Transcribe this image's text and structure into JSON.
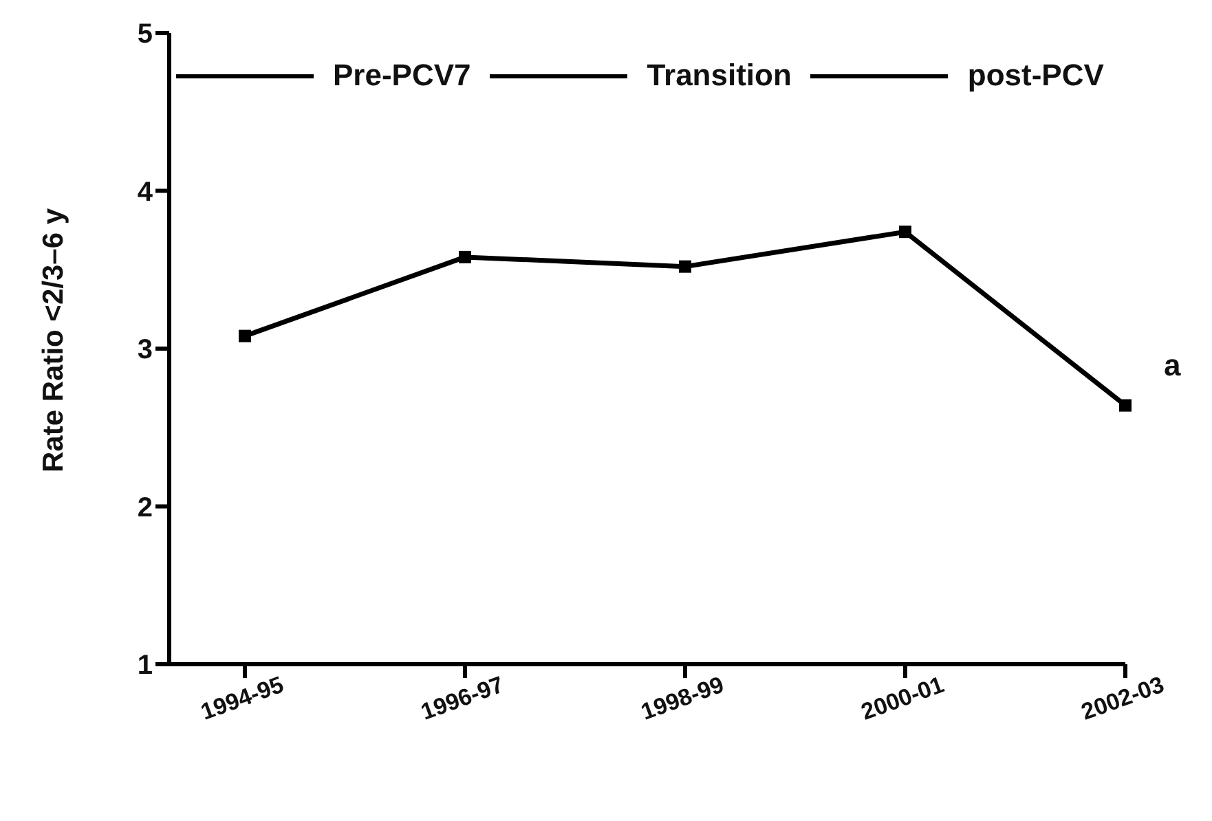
{
  "chart_data": {
    "type": "line",
    "ylabel": "Rate Ratio <2/3–6 y",
    "categories": [
      "1994-95",
      "1996-97",
      "1998-99",
      "2000-01",
      "2002-03"
    ],
    "series": [
      {
        "color": "#000000",
        "values": [
          3.08,
          3.58,
          3.52,
          3.74,
          2.64
        ]
      }
    ],
    "ylim": [
      1,
      5
    ],
    "yticks": [
      1,
      2,
      3,
      4,
      5
    ],
    "grid": false,
    "marker": "square",
    "line_style": "solid",
    "annotations": [
      "Pre-PCV7",
      "Transition",
      "post-PCV",
      {
        "text": "a",
        "x": "2002-03",
        "y": 2.64
      }
    ]
  }
}
